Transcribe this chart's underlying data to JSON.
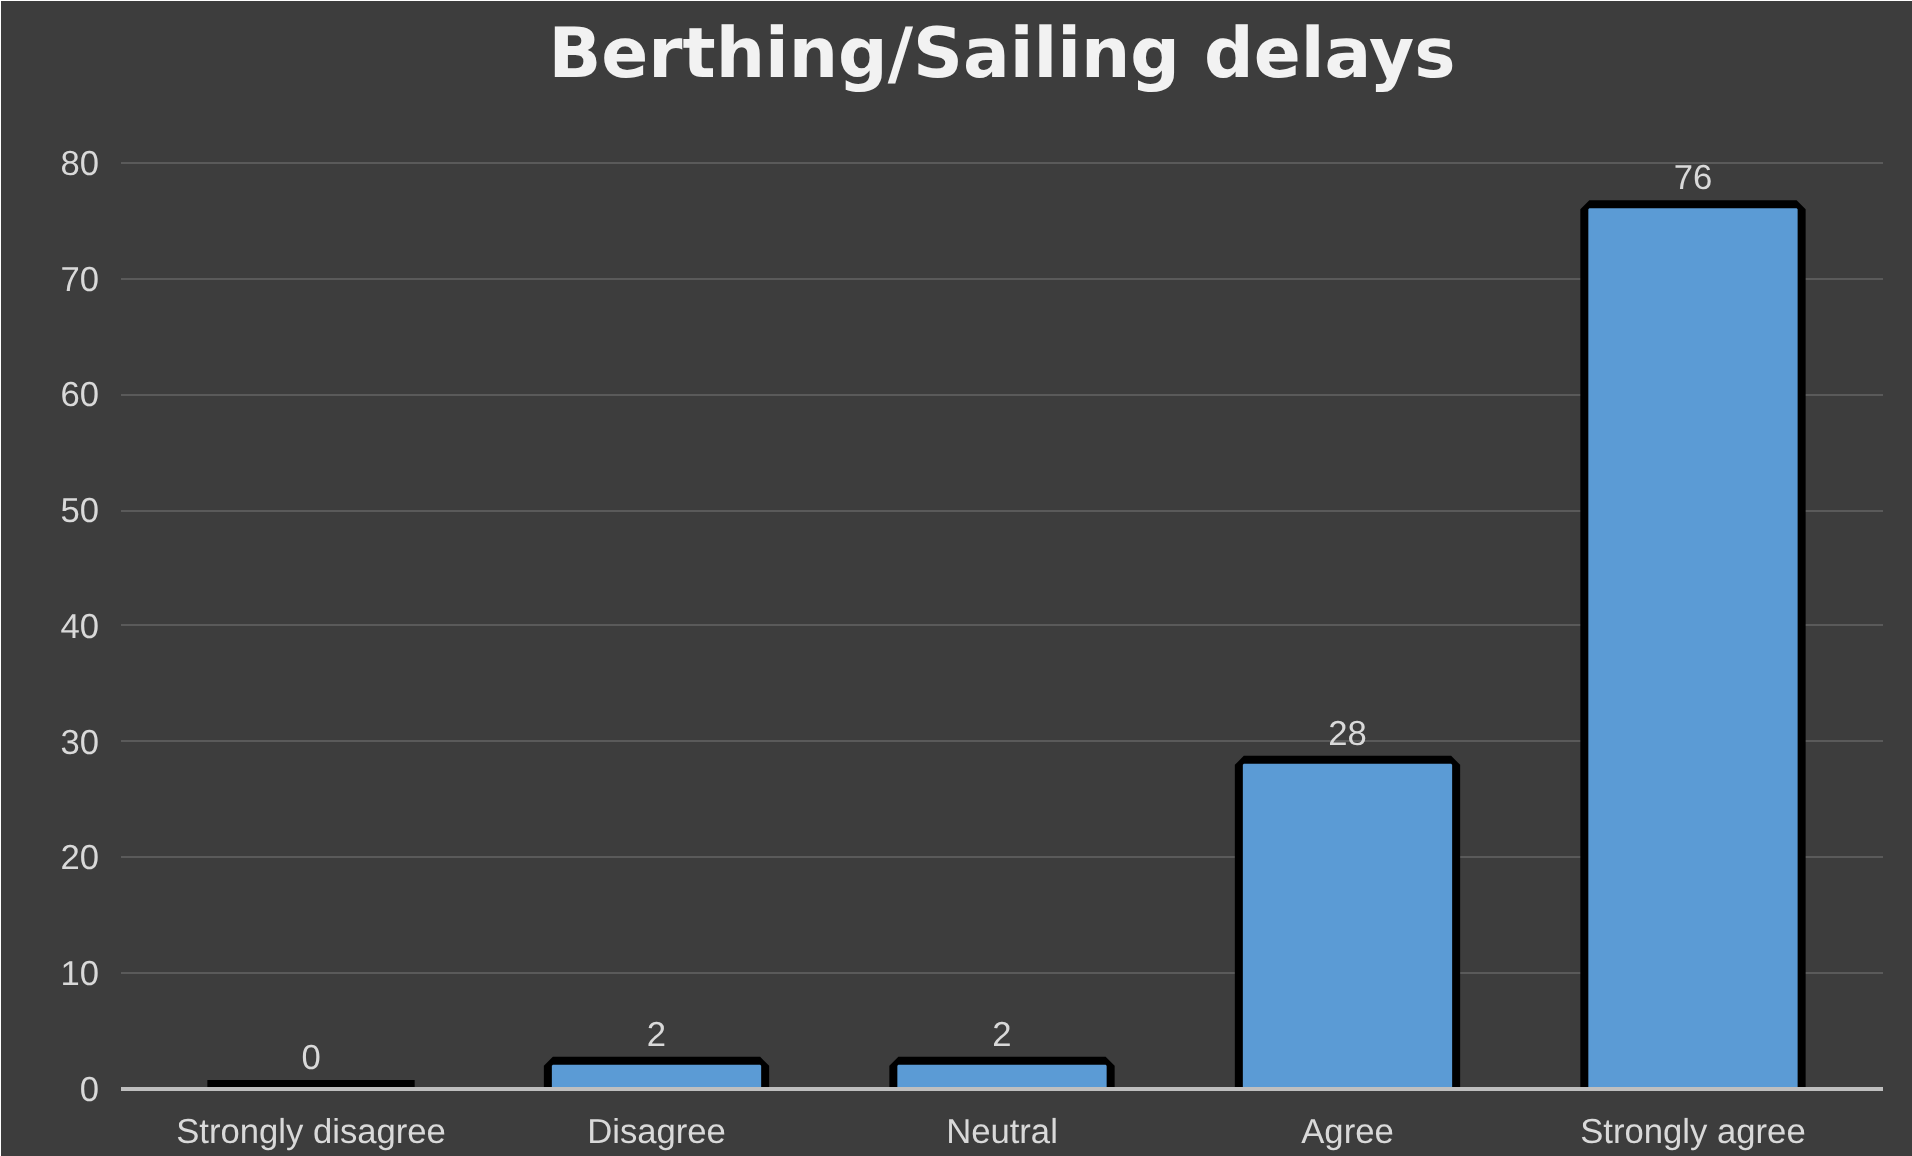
{
  "chart_data": {
    "type": "bar",
    "title": "Berthing/Sailing delays",
    "categories": [
      "Strongly disagree",
      "Disagree",
      "Neutral",
      "Agree",
      "Strongly agree"
    ],
    "values": [
      0,
      2,
      2,
      28,
      76
    ],
    "color": "#5b9bd5",
    "ylim": [
      0,
      85
    ],
    "yticks": [
      0,
      10,
      20,
      30,
      40,
      50,
      60,
      70,
      80
    ],
    "grid": "y",
    "data_labels": true
  }
}
